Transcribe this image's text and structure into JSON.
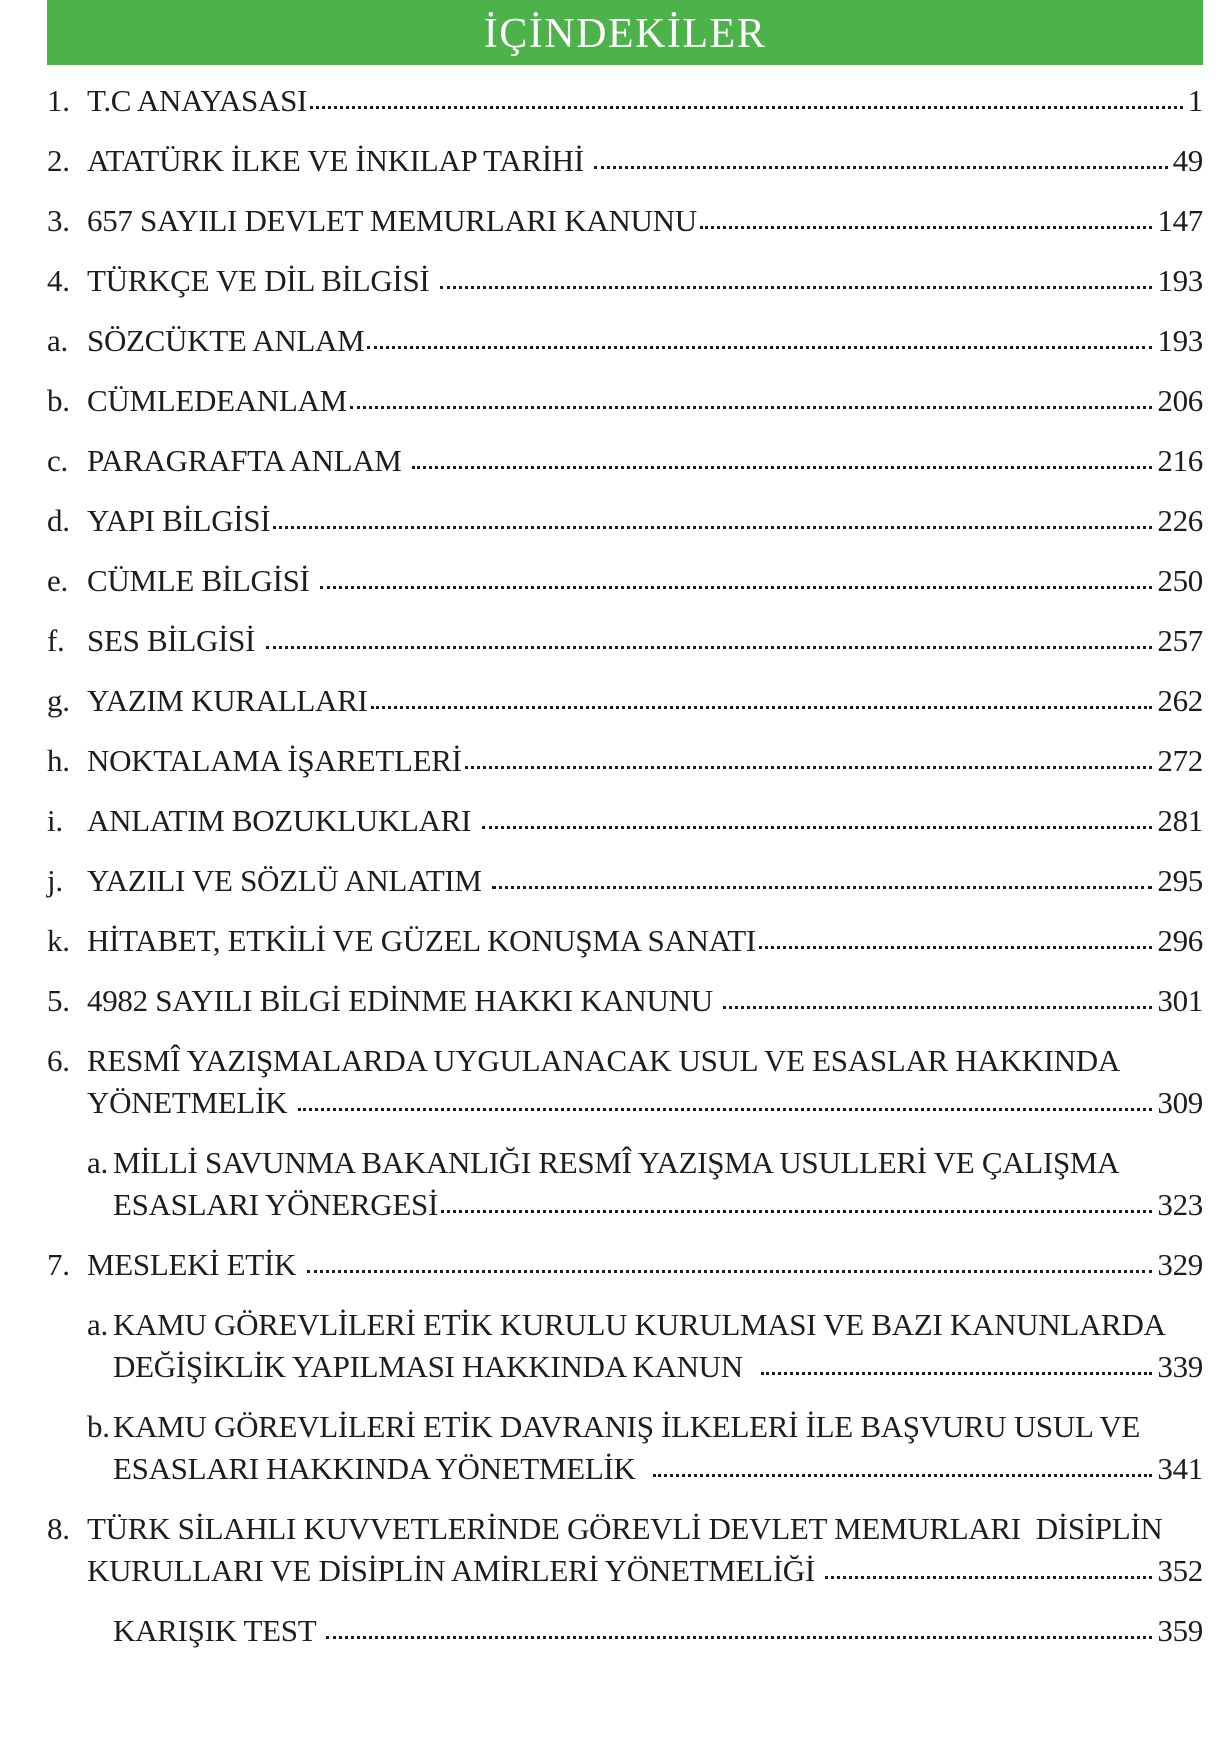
{
  "page": {
    "title": "İÇİNDEKİLER",
    "colors": {
      "header_bg": "#4db24a",
      "title_text": "#ffffff",
      "body_text": "#1d1d1b",
      "page_bg": "#ffffff"
    }
  },
  "toc": {
    "entries": [
      {
        "marker": "1.",
        "level": 0,
        "lines": [
          "T.C ANAYASASI"
        ],
        "page": "1"
      },
      {
        "marker": "2.",
        "level": 0,
        "lines": [
          "ATATÜRK İLKE VE İNKILAP TARİHİ "
        ],
        "page": "49"
      },
      {
        "marker": "3.",
        "level": 0,
        "lines": [
          "657 SAYILI DEVLET MEMURLARI KANUNU"
        ],
        "page": "147"
      },
      {
        "marker": "4.",
        "level": 0,
        "lines": [
          "TÜRKÇE VE DİL BİLGİSİ "
        ],
        "page": "193"
      },
      {
        "marker": "a.",
        "level": 0,
        "lines": [
          "SÖZCÜKTE ANLAM"
        ],
        "page": "193"
      },
      {
        "marker": "b.",
        "level": 0,
        "lines": [
          "CÜMLEDEANLAM"
        ],
        "page": "206"
      },
      {
        "marker": "c.",
        "level": 0,
        "lines": [
          "PARAGRAFTA ANLAM "
        ],
        "page": "216"
      },
      {
        "marker": "d.",
        "level": 0,
        "lines": [
          "YAPI BİLGİSİ"
        ],
        "page": "226"
      },
      {
        "marker": "e.",
        "level": 0,
        "lines": [
          "CÜMLE BİLGİSİ "
        ],
        "page": "250"
      },
      {
        "marker": "f.",
        "level": 0,
        "lines": [
          "SES BİLGİSİ "
        ],
        "page": "257"
      },
      {
        "marker": "g.",
        "level": 0,
        "lines": [
          "YAZIM KURALLARI"
        ],
        "page": "262"
      },
      {
        "marker": "h.",
        "level": 0,
        "lines": [
          "NOKTALAMA İŞARETLERİ"
        ],
        "page": "272"
      },
      {
        "marker": "i.",
        "level": 0,
        "lines": [
          "ANLATIM BOZUKLUKLARI "
        ],
        "page": "281"
      },
      {
        "marker": "j.",
        "level": 0,
        "lines": [
          "YAZILI VE SÖZLÜ ANLATIM "
        ],
        "page": "295"
      },
      {
        "marker": "k.",
        "level": 0,
        "lines": [
          "HİTABET, ETKİLİ VE GÜZEL KONUŞMA SANATI"
        ],
        "page": "296"
      },
      {
        "marker": "5.",
        "level": 0,
        "lines": [
          "4982 SAYILI BİLGİ EDİNME HAKKI KANUNU "
        ],
        "page": "301"
      },
      {
        "marker": "6.",
        "level": 0,
        "lines": [
          "RESMÎ YAZIŞMALARDA UYGULANACAK USUL VE ESASLAR HAKKINDA",
          "YÖNETMELİK "
        ],
        "page": "309"
      },
      {
        "marker": "a.",
        "level": 1,
        "lines": [
          "MİLLİ SAVUNMA BAKANLIĞI RESMÎ YAZIŞMA USULLERİ VE ÇALIŞMA",
          "ESASLARI YÖNERGESİ"
        ],
        "page": "323"
      },
      {
        "marker": "7.",
        "level": 0,
        "lines": [
          "MESLEKİ ETİK "
        ],
        "page": "329"
      },
      {
        "marker": "a.",
        "level": 1,
        "lines": [
          "KAMU GÖREVLİLERİ ETİK KURULU KURULMASI VE BAZI KANUNLARDA",
          "DEĞİŞİKLİK YAPILMASI HAKKINDA KANUN  "
        ],
        "page": "339"
      },
      {
        "marker": "b.",
        "level": 1,
        "lines": [
          "KAMU GÖREVLİLERİ ETİK DAVRANIŞ İLKELERİ İLE BAŞVURU USUL VE",
          "ESASLARI HAKKINDA YÖNETMELİK  "
        ],
        "page": "341"
      },
      {
        "marker": "8.",
        "level": 0,
        "lines": [
          "TÜRK SİLAHLI KUVVETLERİNDE GÖREVLİ DEVLET MEMURLARI  DİSİPLİN",
          "KURULLARI VE DİSİPLİN AMİRLERİ YÖNETMELİĞİ "
        ],
        "page": "352"
      },
      {
        "marker": "",
        "level": 1,
        "lines": [
          "KARIŞIK TEST "
        ],
        "page": "359"
      }
    ]
  }
}
